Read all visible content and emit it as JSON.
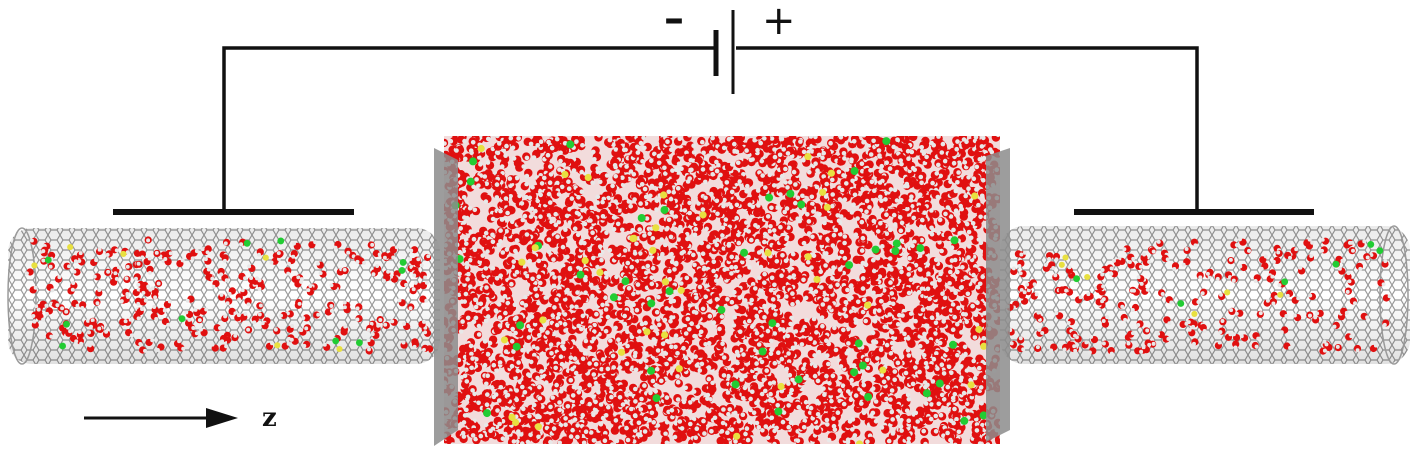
{
  "battery": {
    "negative_symbol": "–",
    "positive_symbol": "+"
  },
  "axis": {
    "label": "z"
  },
  "colors": {
    "wire": "#111111",
    "nanotube_mesh": "#9a9a9a",
    "oxygen": "#e01010",
    "hydrogen": "#e8e8e8",
    "ion_green": "#22cc33",
    "ion_yellow": "#e8e040",
    "membrane": "#8c8c8c"
  }
}
